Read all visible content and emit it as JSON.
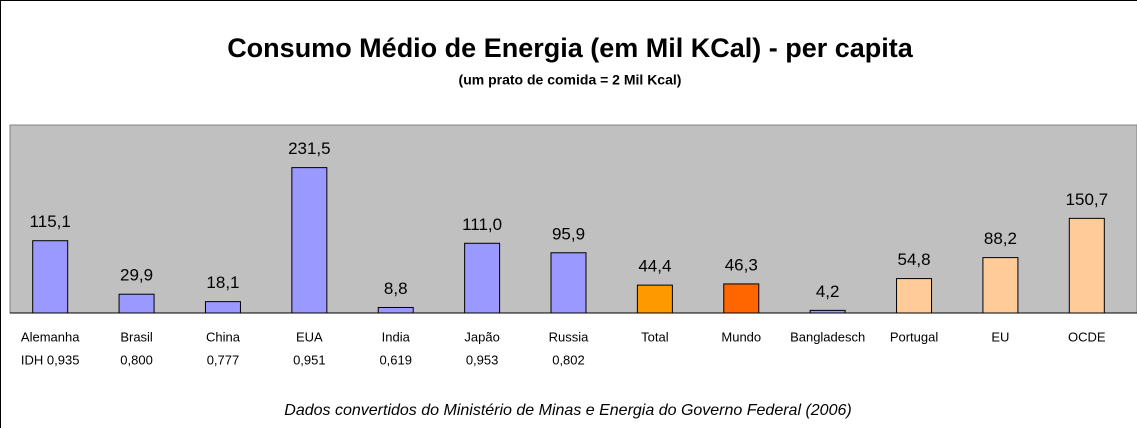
{
  "chart_data": {
    "type": "bar",
    "title": "Consumo Médio de Energia (em Mil KCal) - per capita",
    "subtitle": "(um prato de comida = 2 Mil Kcal)",
    "footnote": "Dados convertidos do Ministério de Minas e Energia do Governo Federal (2006)",
    "categories": [
      "Alemanha",
      "Brasil",
      "China",
      "EUA",
      "India",
      "Japão",
      "Russia",
      "Total",
      "Mundo",
      "Bangladesch",
      "Portugal",
      "EU",
      "OCDE"
    ],
    "category_sublabels": [
      "IDH 0,935",
      "0,800",
      "0,777",
      "0,951",
      "0,619",
      "0,953",
      "0,802",
      null,
      null,
      null,
      null,
      null,
      null
    ],
    "values": [
      115.1,
      29.9,
      18.1,
      231.5,
      8.8,
      111.0,
      95.9,
      44.4,
      46.3,
      4.2,
      54.8,
      88.2,
      150.7
    ],
    "value_labels": [
      "115,1",
      "29,9",
      "18,1",
      "231,5",
      "8,8",
      "111,0",
      "95,9",
      "44,4",
      "46,3",
      "4,2",
      "54,8",
      "88,2",
      "150,7"
    ],
    "colors": [
      "#9999ff",
      "#9999ff",
      "#9999ff",
      "#9999ff",
      "#9999ff",
      "#9999ff",
      "#9999ff",
      "#ff9900",
      "#ff6600",
      "#9999ff",
      "#ffcc99",
      "#ffcc99",
      "#ffcc99"
    ],
    "ylim": [
      0,
      250
    ]
  }
}
